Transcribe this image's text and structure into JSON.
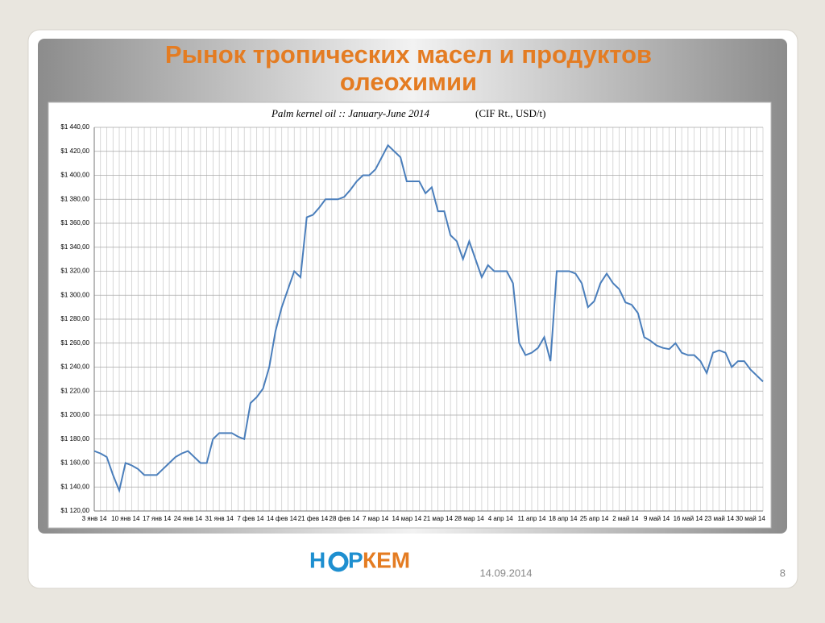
{
  "slide": {
    "title_lines": [
      "Рынок тропических масел и продуктов",
      "олеохимии"
    ],
    "date": "14.09.2014",
    "page": "8",
    "logo": {
      "start": "Н",
      "middle": "Р",
      "end": "КЕМ"
    }
  },
  "chart_data": {
    "type": "line",
    "title": "Palm kernel oil :: January-June 2014",
    "subtitle": "(CIF Rt., USD/t)",
    "categories": [
      "3 янв 14",
      null,
      null,
      null,
      null,
      "10 янв 14",
      null,
      null,
      null,
      null,
      "17 янв 14",
      null,
      null,
      null,
      null,
      "24 янв 14",
      null,
      null,
      null,
      null,
      "31 янв 14",
      null,
      null,
      null,
      null,
      "7 фев 14",
      null,
      null,
      null,
      null,
      "14 фев 14",
      null,
      null,
      null,
      null,
      "21 фев 14",
      null,
      null,
      null,
      null,
      "28 фев 14",
      null,
      null,
      null,
      null,
      "7 мар 14",
      null,
      null,
      null,
      null,
      "14 мар 14",
      null,
      null,
      null,
      null,
      "21 мар 14",
      null,
      null,
      null,
      null,
      "28 мар 14",
      null,
      null,
      null,
      null,
      "4 апр 14",
      null,
      null,
      null,
      null,
      "11 апр 14",
      null,
      null,
      null,
      null,
      "18 апр 14",
      null,
      null,
      null,
      null,
      "25 апр 14",
      null,
      null,
      null,
      null,
      "2 май 14",
      null,
      null,
      null,
      null,
      "9 май 14",
      null,
      null,
      null,
      null,
      "16 май 14",
      null,
      null,
      null,
      null,
      "23 май 14",
      null,
      null,
      null,
      null,
      "30 май 14",
      null,
      null
    ],
    "values": [
      1170,
      1168,
      1165,
      1150,
      1137,
      1160,
      1158,
      1155,
      1150,
      1150,
      1150,
      1155,
      1160,
      1165,
      1168,
      1170,
      1165,
      1160,
      1160,
      1180,
      1185,
      1185,
      1185,
      1182,
      1180,
      1210,
      1215,
      1222,
      1240,
      1270,
      1290,
      1305,
      1320,
      1315,
      1365,
      1367,
      1373,
      1380,
      1380,
      1380,
      1382,
      1388,
      1395,
      1400,
      1400,
      1405,
      1415,
      1425,
      1420,
      1415,
      1395,
      1395,
      1395,
      1385,
      1390,
      1370,
      1370,
      1350,
      1345,
      1330,
      1345,
      1330,
      1315,
      1325,
      1320,
      1320,
      1320,
      1310,
      1260,
      1250,
      1252,
      1256,
      1265,
      1245,
      1320,
      1320,
      1320,
      1318,
      1310,
      1290,
      1295,
      1310,
      1318,
      1310,
      1305,
      1294,
      1292,
      1285,
      1265,
      1262,
      1258,
      1256,
      1255,
      1260,
      1252,
      1250,
      1250,
      1245,
      1235,
      1252,
      1254,
      1252,
      1240,
      1245,
      1245,
      1238,
      1233,
      1228
    ],
    "color": "#4a7ebb",
    "ylim": [
      1120,
      1440
    ],
    "yticks": [
      {
        "value": 1120,
        "label": "$1 120,00"
      },
      {
        "value": 1140,
        "label": "$1 140,00"
      },
      {
        "value": 1160,
        "label": "$1 160,00"
      },
      {
        "value": 1180,
        "label": "$1 180,00"
      },
      {
        "value": 1200,
        "label": "$1 200,00"
      },
      {
        "value": 1220,
        "label": "$1 220,00"
      },
      {
        "value": 1240,
        "label": "$1 240,00"
      },
      {
        "value": 1260,
        "label": "$1 260,00"
      },
      {
        "value": 1280,
        "label": "$1 280,00"
      },
      {
        "value": 1300,
        "label": "$1 300,00"
      },
      {
        "value": 1320,
        "label": "$1 320,00"
      },
      {
        "value": 1340,
        "label": "$1 340,00"
      },
      {
        "value": 1360,
        "label": "$1 360,00"
      },
      {
        "value": 1380,
        "label": "$1 380,00"
      },
      {
        "value": 1400,
        "label": "$1 400,00"
      },
      {
        "value": 1420,
        "label": "$1 420,00"
      },
      {
        "value": 1440,
        "label": "$1 440,00"
      }
    ],
    "grid": true
  }
}
